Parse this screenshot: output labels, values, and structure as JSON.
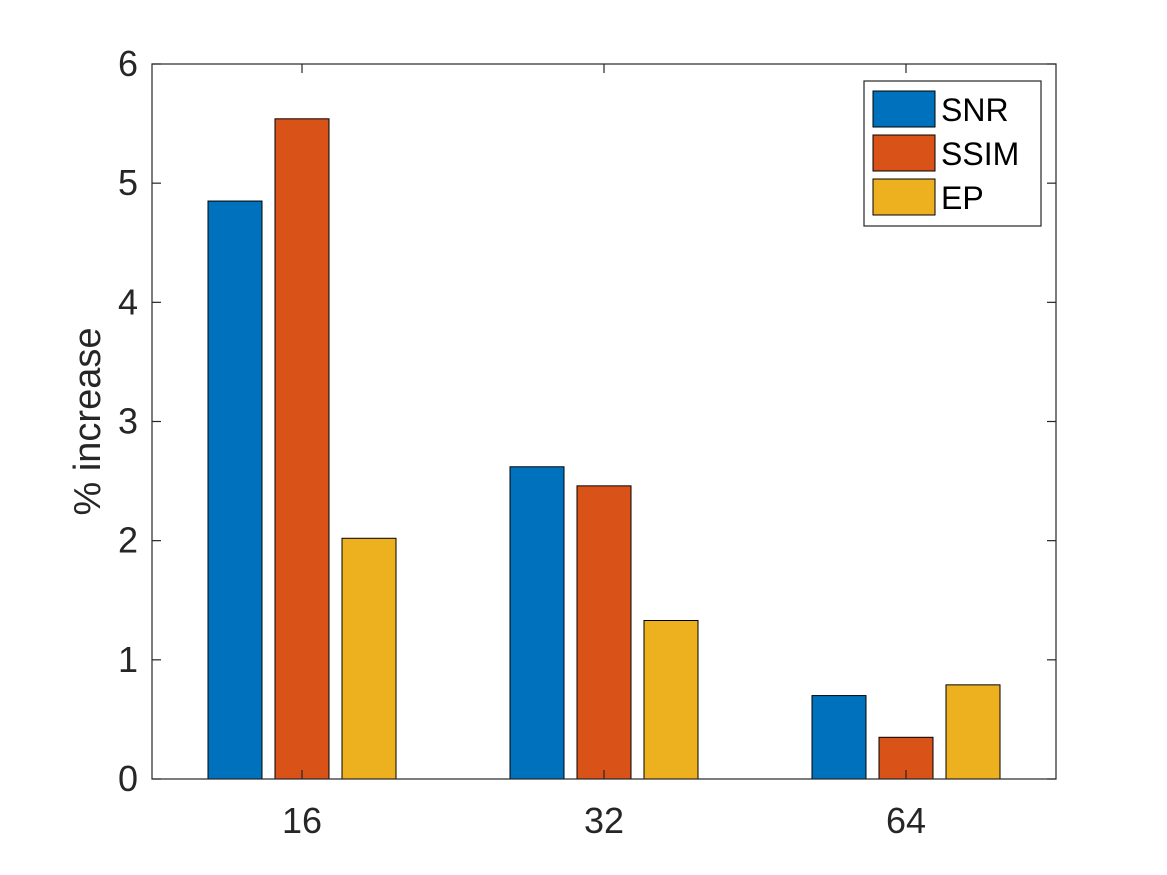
{
  "chart_data": {
    "type": "bar",
    "title": "",
    "xlabel": "",
    "ylabel": "% increase",
    "categories": [
      "16",
      "32",
      "64"
    ],
    "series": [
      {
        "name": "SNR",
        "values": [
          4.85,
          2.62,
          0.7
        ],
        "color": "#0072BD"
      },
      {
        "name": "SSIM",
        "values": [
          5.54,
          2.46,
          0.35
        ],
        "color": "#D95319"
      },
      {
        "name": "EP",
        "values": [
          2.02,
          1.33,
          0.79
        ],
        "color": "#EDB120"
      }
    ],
    "ylim": [
      0,
      6
    ],
    "yticks": [
      "0",
      "1",
      "2",
      "3",
      "4",
      "5",
      "6"
    ],
    "grid": false,
    "legend_position": "top-right",
    "box": true
  }
}
